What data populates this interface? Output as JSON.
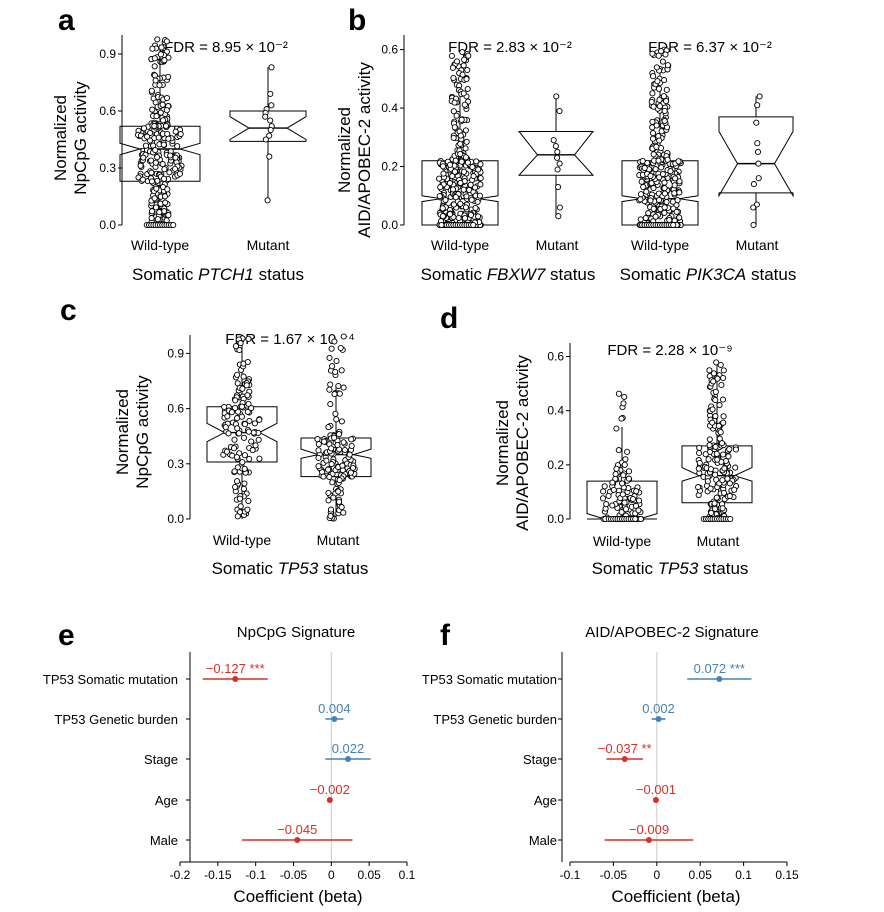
{
  "colors": {
    "negative": "#d73027",
    "positive": "#4682b4",
    "axis": "#000000",
    "zero_line": "#cccccc"
  },
  "panels": {
    "a": {
      "label": "a",
      "fdr": "FDR = 8.95 × 10⁻²",
      "ylabel_line1": "Normalized",
      "ylabel_line2": "NpCpG activity",
      "cat1": "Wild-type",
      "cat2": "Mutant",
      "xlabel_pre": "Somatic ",
      "xlabel_gene": "PTCH1",
      "xlabel_post": " status"
    },
    "b": {
      "label": "b",
      "fdr_left": "FDR = 2.83 × 10⁻²",
      "fdr_right": "FDR = 6.37 × 10⁻²",
      "ylabel_line1": "Normalized",
      "ylabel_line2": "AID/APOBEC-2 activity",
      "cat1": "Wild-type",
      "cat2": "Mutant",
      "cat3": "Wild-type",
      "cat4": "Mutant",
      "xlabel1_pre": "Somatic ",
      "xlabel1_gene": "FBXW7",
      "xlabel1_post": " status",
      "xlabel2_pre": "Somatic ",
      "xlabel2_gene": "PIK3CA",
      "xlabel2_post": " status"
    },
    "c": {
      "label": "c",
      "fdr": "FDR = 1.67 × 10 ⁻⁴",
      "ylabel_line1": "Normalized",
      "ylabel_line2": "NpCpG activity",
      "cat1": "Wild-type",
      "cat2": "Mutant",
      "xlabel_pre": "Somatic ",
      "xlabel_gene": "TP53",
      "xlabel_post": " status"
    },
    "d": {
      "label": "d",
      "fdr": "FDR = 2.28 × 10⁻⁹",
      "ylabel_line1": "Normalized",
      "ylabel_line2": "AID/APOBEC-2 activity",
      "cat1": "Wild-type",
      "cat2": "Mutant",
      "xlabel_pre": "Somatic ",
      "xlabel_gene": "TP53",
      "xlabel_post": " status"
    },
    "e": {
      "label": "e",
      "title": "NpCpG Signature",
      "xlabel": "Coefficient (beta)"
    },
    "f": {
      "label": "f",
      "title": "AID/APOBEC-2 Signature",
      "xlabel": "Coefficient (beta)"
    }
  },
  "chart_data": [
    {
      "panel": "a",
      "type": "box",
      "ylim": [
        0,
        1.0
      ],
      "yticks": [
        0.0,
        0.3,
        0.6,
        0.9
      ],
      "ytick_labels": [
        "0.0",
        "0.3",
        "0.6",
        "0.9"
      ],
      "groups": [
        {
          "name": "Wild-type",
          "q1": 0.23,
          "median": 0.4,
          "q3": 0.52,
          "notch_lo": 0.37,
          "notch_hi": 0.43,
          "whisker_lo": 0.0,
          "whisker_hi": 0.95,
          "n_points": 280,
          "point_max": 0.98,
          "zero_pile": true
        },
        {
          "name": "Mutant",
          "q1": 0.44,
          "median": 0.51,
          "q3": 0.6,
          "notch_lo": 0.45,
          "notch_hi": 0.57,
          "whisker_lo": 0.13,
          "whisker_hi": 0.83,
          "points": [
            0.83,
            0.69,
            0.63,
            0.61,
            0.59,
            0.57,
            0.55,
            0.52,
            0.5,
            0.47,
            0.45,
            0.36,
            0.13
          ]
        }
      ]
    },
    {
      "panel": "b",
      "type": "box",
      "ylim": [
        0,
        0.65
      ],
      "yticks": [
        0.0,
        0.2,
        0.4,
        0.6
      ],
      "ytick_labels": [
        "0.0",
        "0.2",
        "0.4",
        "0.6"
      ],
      "groups": [
        {
          "name": "Wild-type",
          "gene": "FBXW7",
          "q1": 0.0,
          "median": 0.09,
          "q3": 0.22,
          "notch_lo": 0.08,
          "notch_hi": 0.1,
          "whisker_lo": 0.0,
          "whisker_hi": 0.52,
          "n_points": 420,
          "point_max": 0.6,
          "zero_pile": true
        },
        {
          "name": "Mutant",
          "gene": "FBXW7",
          "q1": 0.17,
          "median": 0.24,
          "q3": 0.32,
          "notch_lo": 0.17,
          "notch_hi": 0.32,
          "whisker_lo": 0.03,
          "whisker_hi": 0.44,
          "points": [
            0.44,
            0.39,
            0.29,
            0.27,
            0.25,
            0.23,
            0.21,
            0.19,
            0.13,
            0.06,
            0.03
          ]
        },
        {
          "name": "Wild-type",
          "gene": "PIK3CA",
          "q1": 0.0,
          "median": 0.09,
          "q3": 0.22,
          "notch_lo": 0.08,
          "notch_hi": 0.1,
          "whisker_lo": 0.0,
          "whisker_hi": 0.52,
          "n_points": 420,
          "point_max": 0.6,
          "zero_pile": true
        },
        {
          "name": "Mutant",
          "gene": "PIK3CA",
          "q1": 0.11,
          "median": 0.21,
          "q3": 0.37,
          "notch_lo": 0.1,
          "notch_hi": 0.32,
          "whisker_lo": 0.0,
          "whisker_hi": 0.44,
          "points": [
            0.44,
            0.41,
            0.35,
            0.28,
            0.25,
            0.21,
            0.16,
            0.14,
            0.07,
            0.06,
            0.0
          ]
        }
      ]
    },
    {
      "panel": "c",
      "type": "box",
      "ylim": [
        0,
        1.0
      ],
      "yticks": [
        0.0,
        0.3,
        0.6,
        0.9
      ],
      "ytick_labels": [
        "0.0",
        "0.3",
        "0.6",
        "0.9"
      ],
      "groups": [
        {
          "name": "Wild-type",
          "q1": 0.31,
          "median": 0.47,
          "q3": 0.61,
          "notch_lo": 0.42,
          "notch_hi": 0.52,
          "whisker_lo": 0.0,
          "whisker_hi": 1.0,
          "n_points": 140,
          "point_max": 1.0,
          "zero_pile": false
        },
        {
          "name": "Mutant",
          "q1": 0.23,
          "median": 0.35,
          "q3": 0.44,
          "notch_lo": 0.33,
          "notch_hi": 0.38,
          "whisker_lo": 0.0,
          "whisker_hi": 0.73,
          "n_points": 150,
          "point_max": 1.0,
          "zero_pile": false
        }
      ]
    },
    {
      "panel": "d",
      "type": "box",
      "ylim": [
        0,
        0.65
      ],
      "yticks": [
        0.0,
        0.2,
        0.4,
        0.6
      ],
      "ytick_labels": [
        "0.0",
        "0.2",
        "0.4",
        "0.6"
      ],
      "groups": [
        {
          "name": "Wild-type",
          "q1": 0.0,
          "median": 0.0,
          "q3": 0.14,
          "notch_lo": 0.0,
          "notch_hi": 0.02,
          "whisker_lo": 0.0,
          "whisker_hi": 0.34,
          "n_points": 110,
          "point_max": 0.48,
          "zero_pile": true
        },
        {
          "name": "Mutant",
          "q1": 0.06,
          "median": 0.16,
          "q3": 0.27,
          "notch_lo": 0.14,
          "notch_hi": 0.19,
          "whisker_lo": 0.0,
          "whisker_hi": 0.58,
          "n_points": 200,
          "point_max": 0.6,
          "zero_pile": true
        }
      ]
    },
    {
      "panel": "e",
      "type": "forest",
      "title": "NpCpG Signature",
      "xlabel": "Coefficient (beta)",
      "xlim": [
        -0.2,
        0.1
      ],
      "xticks": [
        -0.2,
        -0.15,
        -0.1,
        -0.05,
        0,
        0.05,
        0.1
      ],
      "xtick_labels": [
        "-0.2",
        "-0.15",
        "-0.1",
        "-0.05",
        "0",
        "0.05",
        "0.1"
      ],
      "rows": [
        {
          "label": "TP53 Somatic mutation",
          "estimate": -0.127,
          "lo": -0.17,
          "hi": -0.084,
          "text": "−0.127 ***",
          "sign": "negative"
        },
        {
          "label": "TP53 Genetic burden",
          "estimate": 0.004,
          "lo": -0.008,
          "hi": 0.016,
          "text": "0.004",
          "sign": "positive"
        },
        {
          "label": "Stage",
          "estimate": 0.022,
          "lo": -0.008,
          "hi": 0.052,
          "text": "0.022",
          "sign": "positive"
        },
        {
          "label": "Age",
          "estimate": -0.002,
          "lo": -0.004,
          "hi": 0.0,
          "text": "−0.002",
          "sign": "negative"
        },
        {
          "label": "Male",
          "estimate": -0.045,
          "lo": -0.118,
          "hi": 0.028,
          "text": "−0.045",
          "sign": "negative"
        }
      ]
    },
    {
      "panel": "f",
      "type": "forest",
      "title": "AID/APOBEC-2 Signature",
      "xlabel": "Coefficient (beta)",
      "xlim": [
        -0.1,
        0.15
      ],
      "xticks": [
        -0.1,
        -0.05,
        0,
        0.05,
        0.1,
        0.15
      ],
      "xtick_labels": [
        "-0.1",
        "-0.05",
        "0",
        "0.05",
        "0.1",
        "0.15"
      ],
      "rows": [
        {
          "label": "TP53 Somatic mutation",
          "estimate": 0.072,
          "lo": 0.035,
          "hi": 0.109,
          "text": "0.072 ***",
          "sign": "positive"
        },
        {
          "label": "TP53 Genetic burden",
          "estimate": 0.002,
          "lo": -0.006,
          "hi": 0.01,
          "text": "0.002",
          "sign": "positive"
        },
        {
          "label": "Stage",
          "estimate": -0.037,
          "lo": -0.058,
          "hi": -0.016,
          "text": "−0.037 **",
          "sign": "negative"
        },
        {
          "label": "Age",
          "estimate": -0.001,
          "lo": -0.003,
          "hi": 0.001,
          "text": "−0.001",
          "sign": "negative"
        },
        {
          "label": "Male",
          "estimate": -0.009,
          "lo": -0.06,
          "hi": 0.042,
          "text": "−0.009",
          "sign": "negative"
        }
      ]
    }
  ]
}
